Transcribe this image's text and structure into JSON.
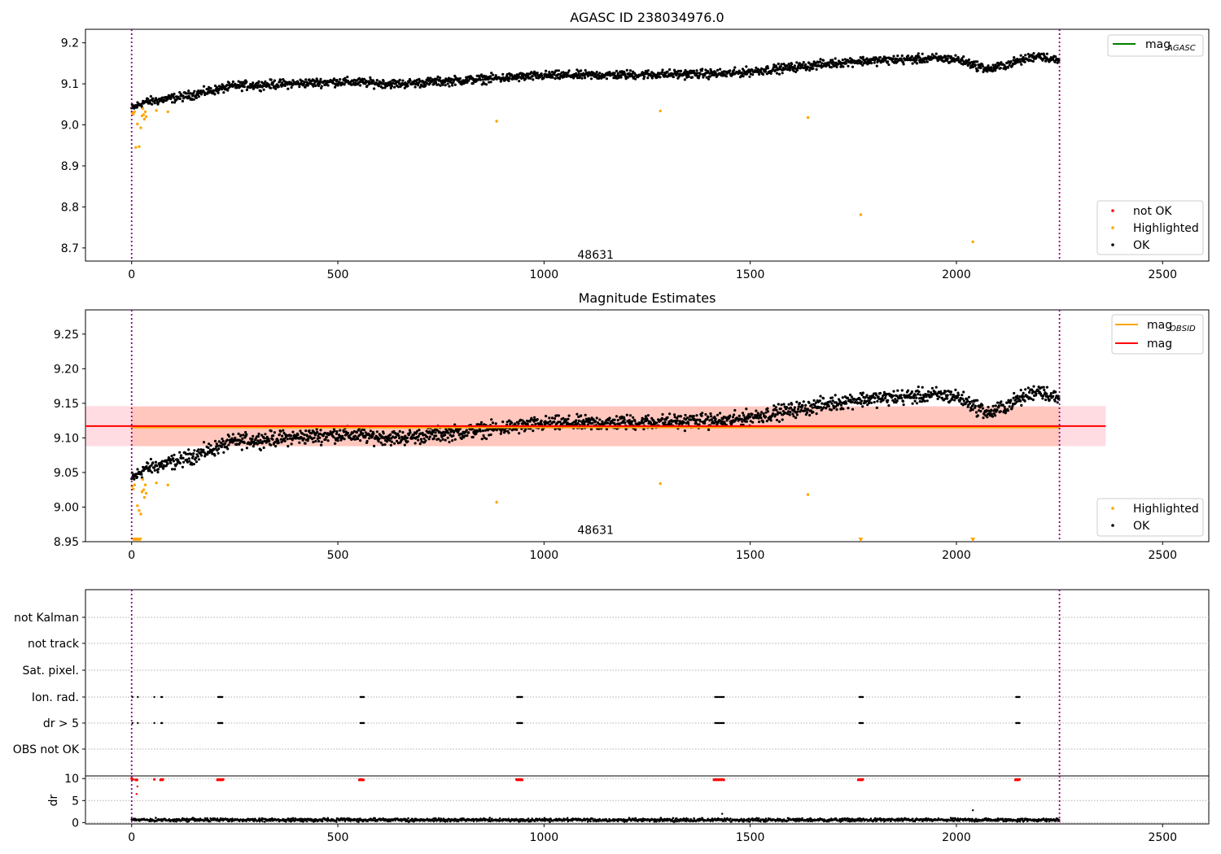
{
  "chart_data": [
    {
      "type": "scatter",
      "title": "AGASC ID 238034976.0",
      "xlim": [
        -112,
        2612
      ],
      "ylim": [
        8.668,
        9.233
      ],
      "xticks": [
        0,
        500,
        1000,
        1500,
        2000,
        2500
      ],
      "yticks": [
        8.7,
        8.8,
        8.9,
        9.0,
        9.1,
        9.2
      ],
      "ytick_labels": [
        "8.7",
        "8.8",
        "8.9",
        "9.0",
        "9.1",
        "9.2"
      ],
      "vlines": [
        0,
        2250
      ],
      "annotation": {
        "text": "48631",
        "x": 1125,
        "y": 8.684
      },
      "legend_lines": [
        {
          "name": "mag",
          "subscript": "AGASC",
          "color": "#008000"
        }
      ],
      "legend_markers": [
        {
          "name": "not OK",
          "color": "#ff0000"
        },
        {
          "name": "Highlighted",
          "color": "#ffa500"
        },
        {
          "name": "OK",
          "color": "#000000"
        }
      ],
      "trend": {
        "x": [
          0,
          30,
          120,
          250,
          500,
          650,
          1000,
          1450,
          1600,
          1750,
          1950,
          2000,
          2080,
          2200,
          2250
        ],
        "y": [
          9.04,
          9.055,
          9.068,
          9.095,
          9.105,
          9.1,
          9.12,
          9.125,
          9.14,
          9.155,
          9.162,
          9.16,
          9.135,
          9.17,
          9.155
        ]
      },
      "highlighted": {
        "x": [
          1,
          4,
          7,
          10,
          14,
          18,
          22,
          25,
          27,
          29,
          31,
          33,
          35,
          60,
          88,
          885,
          1282,
          1640,
          1768,
          2040
        ],
        "y": [
          9.03,
          9.026,
          9.032,
          8.945,
          9.002,
          8.947,
          8.993,
          9.022,
          9.04,
          9.025,
          9.014,
          9.032,
          9.02,
          9.035,
          9.032,
          9.009,
          9.034,
          9.018,
          8.781,
          8.715
        ]
      }
    },
    {
      "type": "scatter",
      "title": "Magnitude Estimates",
      "xlim": [
        -112,
        2612
      ],
      "ylim": [
        8.95,
        9.285
      ],
      "xticks": [
        0,
        500,
        1000,
        1500,
        2000,
        2500
      ],
      "yticks": [
        8.95,
        9.0,
        9.05,
        9.1,
        9.15,
        9.2,
        9.25
      ],
      "ytick_labels": [
        "8.95",
        "9.00",
        "9.05",
        "9.10",
        "9.15",
        "9.20",
        "9.25"
      ],
      "vlines": [
        0,
        2250
      ],
      "annotation": {
        "text": "48631",
        "x": 1125,
        "y": 8.96
      },
      "mag_line": {
        "value": 9.117,
        "color": "#ff0000",
        "x": [
          -112,
          2362
        ]
      },
      "mag_band": {
        "low": 9.088,
        "high": 9.146,
        "x": [
          -112,
          2362
        ],
        "color": "#ffc0cb"
      },
      "mag_obsid_line": {
        "value": 9.115,
        "color": "#ffa500",
        "x": [
          0,
          2250
        ]
      },
      "mag_obsid_band": {
        "low": 9.088,
        "high": 9.145,
        "x": [
          0,
          2250
        ],
        "color": "#ffa07a"
      },
      "legend_lines": [
        {
          "name": "mag",
          "subscript": "OBSID",
          "color": "#ffa500"
        },
        {
          "name": "mag",
          "subscript": "",
          "color": "#ff0000"
        }
      ],
      "legend_markers": [
        {
          "name": "Highlighted",
          "color": "#ffa500"
        },
        {
          "name": "OK",
          "color": "#000000"
        }
      ],
      "highlighted": {
        "x": [
          1,
          4,
          7,
          14,
          18,
          22,
          25,
          27,
          29,
          31,
          33,
          35,
          60,
          88,
          885,
          1282,
          1640
        ],
        "y": [
          9.03,
          9.026,
          9.032,
          9.002,
          8.995,
          8.99,
          9.022,
          9.04,
          9.025,
          9.014,
          9.032,
          9.02,
          9.035,
          9.032,
          9.007,
          9.034,
          9.018
        ]
      },
      "below_range_markers": {
        "x": [
          5,
          10,
          15,
          20,
          1768,
          2040
        ],
        "y": [
          8.951,
          8.951,
          8.951,
          8.951,
          8.951,
          8.951
        ]
      }
    },
    {
      "type": "scatter",
      "title": "",
      "xlim": [
        -112,
        2612
      ],
      "xticks": [
        0,
        500,
        1000,
        1500,
        2000,
        2500
      ],
      "vlines": [
        0,
        2250
      ],
      "flag_labels": [
        "not Kalman",
        "not track",
        "Sat. pixel.",
        "Ion. rad.",
        "dr > 5",
        "OBS not OK"
      ],
      "flag_events": {
        "Ion. rad.": [
          2,
          15,
          55,
          72,
          74,
          210,
          212,
          214,
          216,
          218,
          220,
          555,
          557,
          559,
          561,
          563,
          935,
          937,
          939,
          941,
          943,
          945,
          947,
          1415,
          1418,
          1421,
          1424,
          1427,
          1430,
          1433,
          1436,
          1765,
          1767,
          1769,
          1771,
          1773,
          2145,
          2147,
          2149,
          2151,
          2153
        ],
        "dr > 5": [
          2,
          15,
          55,
          72,
          74,
          210,
          212,
          214,
          216,
          218,
          220,
          555,
          557,
          559,
          561,
          563,
          935,
          937,
          939,
          941,
          943,
          945,
          947,
          1415,
          1418,
          1421,
          1424,
          1427,
          1430,
          1433,
          1436,
          1765,
          1767,
          1769,
          1771,
          1773,
          2145,
          2147,
          2149,
          2151,
          2153
        ]
      },
      "ylabel": "dr",
      "dr_ylim": [
        -0.3,
        10.6
      ],
      "dr_yticks": [
        0,
        5,
        10
      ],
      "dr_ytick_labels": [
        "0",
        "5",
        "10"
      ],
      "dr_high": {
        "x": [
          0,
          3,
          10,
          13,
          55,
          70,
          72,
          74,
          76,
          208,
          210,
          212,
          214,
          216,
          218,
          220,
          222,
          552,
          554,
          556,
          558,
          560,
          562,
          933,
          935,
          937,
          939,
          941,
          943,
          945,
          947,
          1412,
          1415,
          1418,
          1421,
          1424,
          1427,
          1430,
          1433,
          1436,
          1762,
          1765,
          1767,
          1769,
          1771,
          1773,
          2143,
          2145,
          2147,
          2149,
          2151,
          2153
        ],
        "y": [
          10,
          9.8,
          9.7,
          9.7,
          9.8,
          9.7,
          9.8,
          9.7,
          9.8,
          9.7,
          9.8,
          9.7,
          9.8,
          9.7,
          9.8,
          9.7,
          9.8,
          9.7,
          9.8,
          9.7,
          9.8,
          9.7,
          9.7,
          9.8,
          9.7,
          9.8,
          9.7,
          9.8,
          9.7,
          9.8,
          9.7,
          9.7,
          9.8,
          9.7,
          9.8,
          9.7,
          9.8,
          9.7,
          9.8,
          9.7,
          9.7,
          9.8,
          9.7,
          9.8,
          9.7,
          9.8,
          9.7,
          9.8,
          9.7,
          9.8,
          9.7,
          9.8
        ]
      },
      "dr_outliers": {
        "x": [
          12,
          14,
          2040,
          1432
        ],
        "y": [
          6.5,
          8.2,
          2.8,
          2.0
        ]
      },
      "dr_baseline": 0.6
    }
  ]
}
